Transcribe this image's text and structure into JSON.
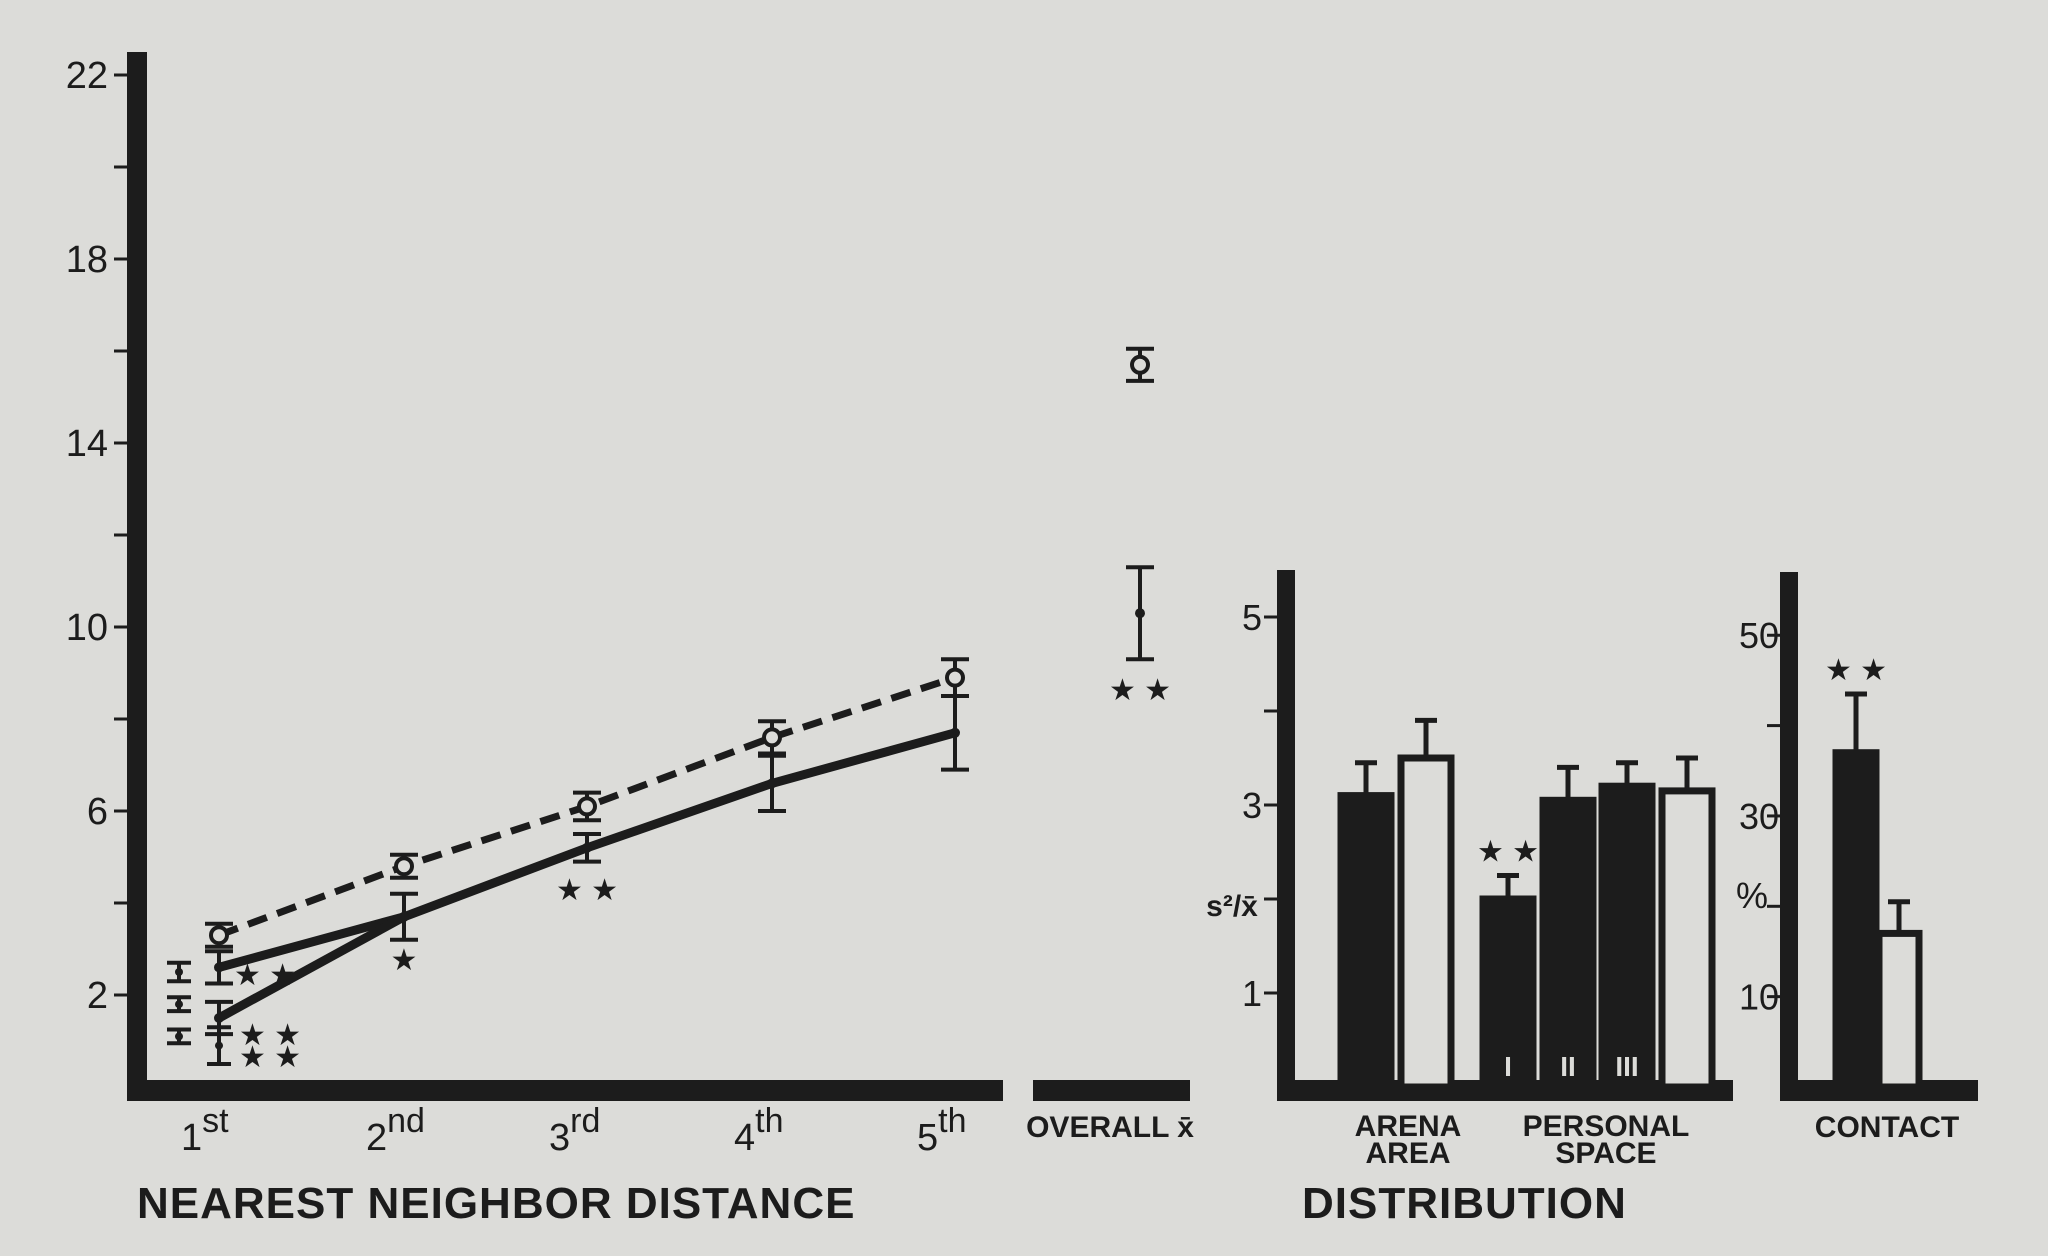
{
  "colors": {
    "ink": "#1c1c1c",
    "paper": "#dcdcd9"
  },
  "chart_data": [
    {
      "type": "line",
      "section_title": "NEAREST NEIGHBOR DISTANCE",
      "x_categories": [
        {
          "num": "1",
          "sup": "st"
        },
        {
          "num": "2",
          "sup": "nd"
        },
        {
          "num": "3",
          "sup": "rd"
        },
        {
          "num": "4",
          "sup": "th"
        },
        {
          "num": "5",
          "sup": "th"
        }
      ],
      "overall_label": "OVERALL x̄",
      "ylim": [
        0,
        22.5
      ],
      "yticks": [
        2,
        6,
        10,
        14,
        18,
        22
      ],
      "series": [
        {
          "style": "dashed",
          "marker": "open-circle",
          "values": [
            3.3,
            4.8,
            6.1,
            7.6,
            8.9
          ],
          "errors": [
            0.25,
            0.25,
            0.3,
            0.35,
            0.4
          ],
          "overall": {
            "value": 15.7,
            "error": 0.35
          }
        },
        {
          "style": "solid",
          "marker": "dot",
          "values": [
            2.6,
            3.7,
            5.2,
            6.6,
            7.7
          ],
          "errors": [
            0.35,
            0.5,
            0.3,
            0.6,
            0.8
          ],
          "overall": {
            "value": 10.3,
            "error": 1.0,
            "significance": "★ ★"
          }
        },
        {
          "style": "solid",
          "marker": "dot",
          "values": [
            1.5,
            3.7
          ],
          "errors": [
            0.35,
            0.5
          ]
        }
      ],
      "first_group_points": [
        {
          "label": "I",
          "value": 2.5,
          "error": 0.2
        },
        {
          "label": "II",
          "value": 1.8,
          "error": 0.15
        },
        {
          "label": "III",
          "value": 1.1,
          "error": 0.15
        },
        {
          "value": 0.9,
          "error": 0.4
        }
      ],
      "significance": [
        "★ ★",
        "★ ★",
        "★ ★",
        "★",
        "★ ★"
      ]
    },
    {
      "type": "bar",
      "section_title": "DISTRIBUTION",
      "ylabel": "s²/x̄",
      "ylim": [
        0,
        5.5
      ],
      "yticks": [
        1,
        3,
        5
      ],
      "groups": [
        {
          "label_lines": [
            "ARENA",
            "AREA"
          ],
          "bars": [
            {
              "fill": "filled",
              "value": 3.1,
              "error": 0.35
            },
            {
              "fill": "open",
              "value": 3.5,
              "error": 0.4
            }
          ]
        },
        {
          "label_lines": [
            "PERSONAL",
            "SPACE"
          ],
          "bars": [
            {
              "fill": "filled",
              "value": 2.0,
              "error": 0.25,
              "significance": "★ ★",
              "inner_label": "I"
            },
            {
              "fill": "filled",
              "value": 3.05,
              "error": 0.35,
              "inner_label": "II"
            },
            {
              "fill": "filled",
              "value": 3.2,
              "error": 0.25,
              "inner_label": "III"
            },
            {
              "fill": "open",
              "value": 3.15,
              "error": 0.35
            }
          ]
        }
      ]
    },
    {
      "type": "bar",
      "ylabel": "%",
      "ylim": [
        0,
        57
      ],
      "yticks": [
        10,
        30,
        50
      ],
      "groups": [
        {
          "label_lines": [
            "CONTACT"
          ],
          "bars": [
            {
              "fill": "filled",
              "value": 37,
              "error": 6.5,
              "significance": "★ ★"
            },
            {
              "fill": "open",
              "value": 17,
              "error": 3.5
            }
          ]
        }
      ]
    }
  ]
}
